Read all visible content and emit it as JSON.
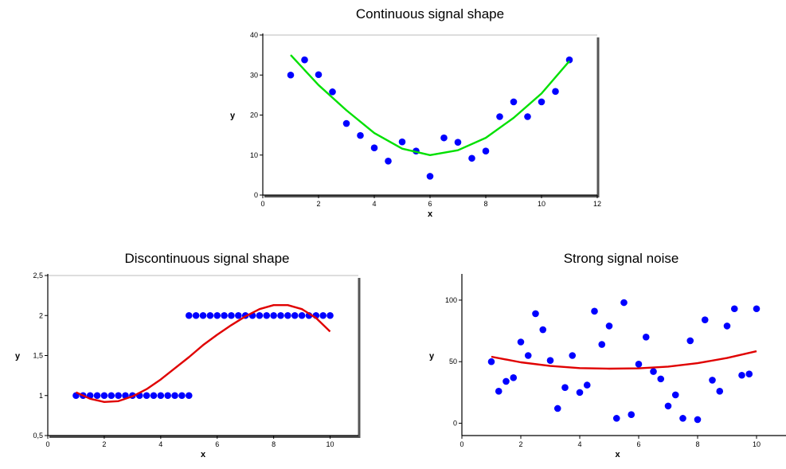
{
  "chart_data": [
    {
      "type": "scatter",
      "title": "Continuous signal shape",
      "xlabel": "x",
      "ylabel": "y",
      "xlim": [
        0,
        12
      ],
      "ylim": [
        0,
        40
      ],
      "xticks": [
        0,
        2,
        4,
        6,
        8,
        10,
        12
      ],
      "yticks": [
        0,
        10,
        20,
        30,
        40
      ],
      "ytick_labels": [
        "0",
        "10",
        "20",
        "30",
        "40"
      ],
      "grid": false,
      "series": [
        {
          "kind": "points",
          "color": "#0000ff",
          "x": [
            1,
            1.5,
            2,
            2.5,
            3,
            3.5,
            4,
            4.5,
            5,
            5.5,
            6,
            6.5,
            7,
            7.5,
            8,
            8.5,
            9,
            9.5,
            10,
            10.5,
            11
          ],
          "y": [
            30,
            33.8,
            30.1,
            25.8,
            17.9,
            14.9,
            11.8,
            8.5,
            13.3,
            11,
            4.7,
            14.3,
            13.2,
            9.2,
            11,
            19.6,
            23.3,
            19.6,
            23.3,
            25.9,
            33.8
          ]
        },
        {
          "kind": "curve",
          "color": "#00e000",
          "x": [
            1,
            2,
            3,
            4,
            5,
            6,
            7,
            8,
            9,
            10,
            11
          ],
          "y": [
            35,
            27.5,
            21.2,
            15.5,
            11.6,
            10,
            11.2,
            14.3,
            19.3,
            25.4,
            33.5
          ]
        }
      ]
    },
    {
      "type": "scatter",
      "title": "Discontinuous signal shape",
      "xlabel": "x",
      "ylabel": "y",
      "xlim": [
        0,
        11
      ],
      "ylim": [
        0.5,
        2.5
      ],
      "xticks": [
        0,
        2,
        4,
        6,
        8,
        10
      ],
      "yticks": [
        0.5,
        1,
        1.5,
        2,
        2.5
      ],
      "ytick_labels": [
        "0,5",
        "1",
        "1,5",
        "2",
        "2,5"
      ],
      "grid": false,
      "series": [
        {
          "kind": "points",
          "color": "#0000ff",
          "x": [
            1,
            1.25,
            1.5,
            1.75,
            2,
            2.25,
            2.5,
            2.75,
            3,
            3.25,
            3.5,
            3.75,
            4,
            4.25,
            4.5,
            4.75,
            5,
            5,
            5.25,
            5.5,
            5.75,
            6,
            6.25,
            6.5,
            6.75,
            7,
            7.25,
            7.5,
            7.75,
            8,
            8.25,
            8.5,
            8.75,
            9,
            9.25,
            9.5,
            9.75,
            10
          ],
          "y": [
            1,
            1,
            1,
            1,
            1,
            1,
            1,
            1,
            1,
            1,
            1,
            1,
            1,
            1,
            1,
            1,
            1,
            2,
            2,
            2,
            2,
            2,
            2,
            2,
            2,
            2,
            2,
            2,
            2,
            2,
            2,
            2,
            2,
            2,
            2,
            2,
            2,
            2
          ]
        },
        {
          "kind": "curve",
          "color": "#e00000",
          "x": [
            1,
            1.5,
            2,
            2.5,
            3,
            3.5,
            4,
            4.5,
            5,
            5.5,
            6,
            6.5,
            7,
            7.5,
            8,
            8.5,
            9,
            9.5,
            10
          ],
          "y": [
            1.04,
            0.96,
            0.92,
            0.93,
            0.99,
            1.08,
            1.2,
            1.34,
            1.48,
            1.63,
            1.76,
            1.88,
            1.99,
            2.08,
            2.13,
            2.13,
            2.08,
            1.97,
            1.8
          ]
        }
      ]
    },
    {
      "type": "scatter",
      "title": "Strong signal noise",
      "xlabel": "x",
      "ylabel": "y",
      "xlim": [
        0,
        11
      ],
      "ylim": [
        -10,
        120
      ],
      "xticks": [
        0,
        2,
        4,
        6,
        8,
        10
      ],
      "yticks": [
        0,
        50,
        100
      ],
      "ytick_labels": [
        "0",
        "50",
        "100"
      ],
      "grid": false,
      "series": [
        {
          "kind": "points",
          "color": "#0000ff",
          "x": [
            1,
            1.25,
            1.5,
            1.75,
            2,
            2.25,
            2.5,
            2.75,
            3,
            3.25,
            3.5,
            3.75,
            4,
            4.25,
            4.5,
            4.75,
            5,
            5.25,
            5.5,
            5.75,
            6,
            6.25,
            6.5,
            6.75,
            7,
            7.25,
            7.5,
            7.75,
            8,
            8.25,
            8.5,
            8.75,
            9,
            9.25,
            9.5,
            9.75,
            10
          ],
          "y": [
            50,
            26,
            34,
            37,
            66,
            55,
            89,
            76,
            51,
            12,
            29,
            55,
            25,
            31,
            91,
            64,
            79,
            4,
            98,
            7,
            48,
            70,
            42,
            36,
            14,
            23,
            4,
            67,
            3,
            84,
            35,
            26,
            79,
            93,
            39,
            40,
            93
          ]
        },
        {
          "kind": "curve",
          "color": "#e00000",
          "x": [
            1,
            2,
            3,
            4,
            5,
            6,
            7,
            8,
            9,
            10
          ],
          "y": [
            54,
            49.5,
            46.5,
            44.8,
            44.3,
            44.6,
            46,
            48.8,
            53,
            58.5
          ]
        }
      ]
    }
  ]
}
